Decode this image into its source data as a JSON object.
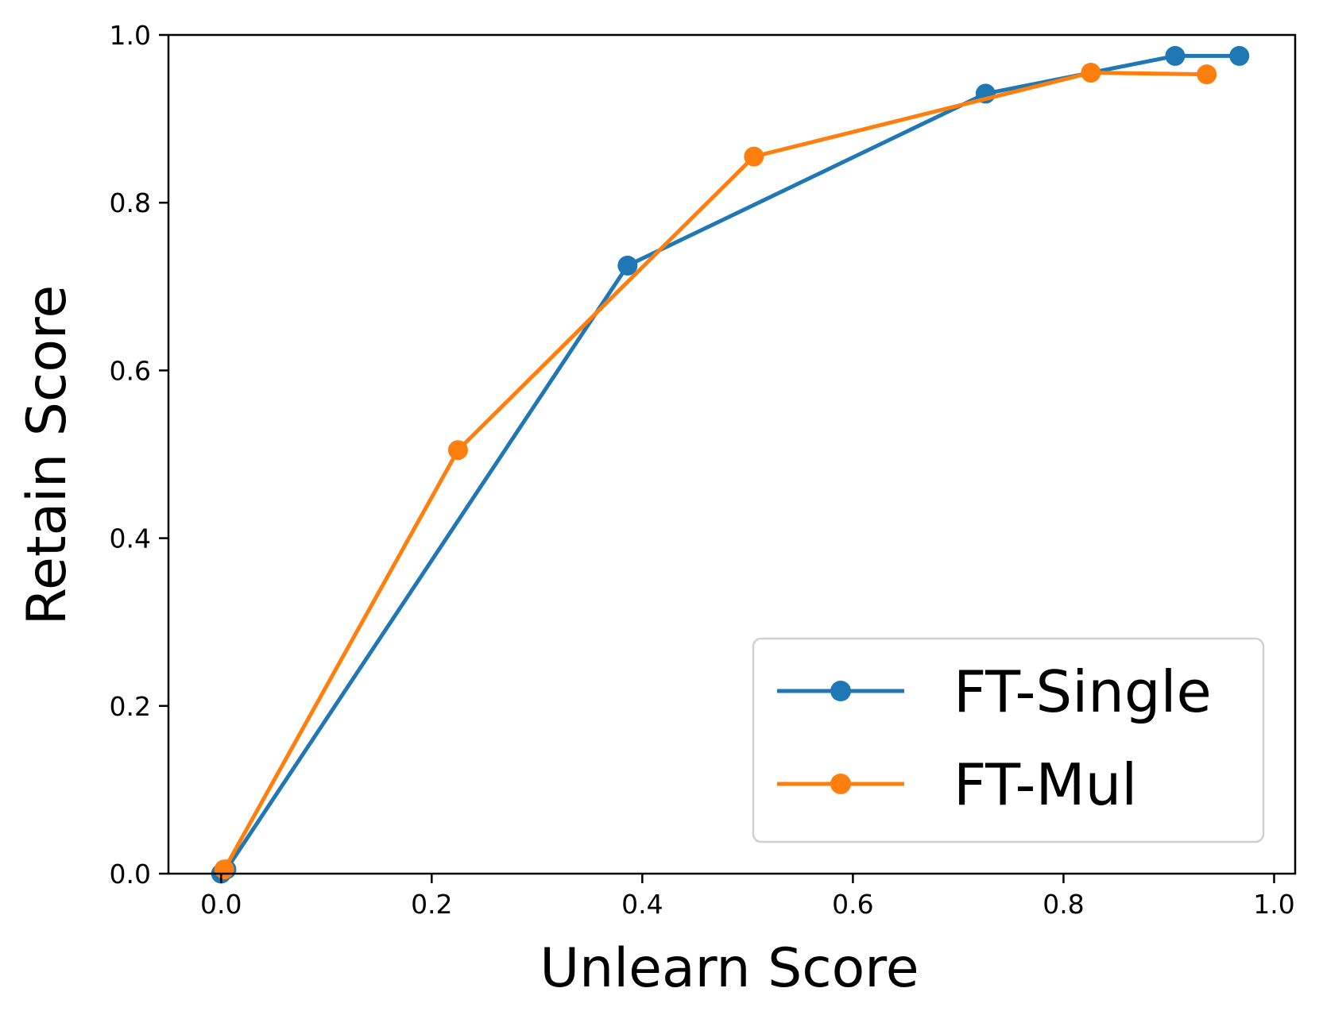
{
  "chart_data": {
    "type": "line",
    "title": "",
    "xlabel": "Unlearn Score",
    "ylabel": "Retain Score",
    "xlim": [
      -0.05,
      1.02
    ],
    "ylim": [
      0.0,
      1.0
    ],
    "x_ticks": [
      "0.0",
      "0.2",
      "0.4",
      "0.6",
      "0.8",
      "1.0"
    ],
    "y_ticks": [
      "0.0",
      "0.2",
      "0.4",
      "0.6",
      "0.8",
      "1.0"
    ],
    "grid": false,
    "legend_position": "lower-right",
    "series": [
      {
        "name": "FT-Single",
        "color": "#1f77b4",
        "x": [
          0.0,
          0.005,
          0.386,
          0.726,
          0.906,
          0.967
        ],
        "y": [
          0.0,
          0.005,
          0.725,
          0.93,
          0.975,
          0.975
        ]
      },
      {
        "name": "FT-Mul",
        "color": "#ff7f0e",
        "x": [
          0.003,
          0.225,
          0.506,
          0.826,
          0.936
        ],
        "y": [
          0.005,
          0.505,
          0.855,
          0.955,
          0.953
        ]
      }
    ]
  }
}
